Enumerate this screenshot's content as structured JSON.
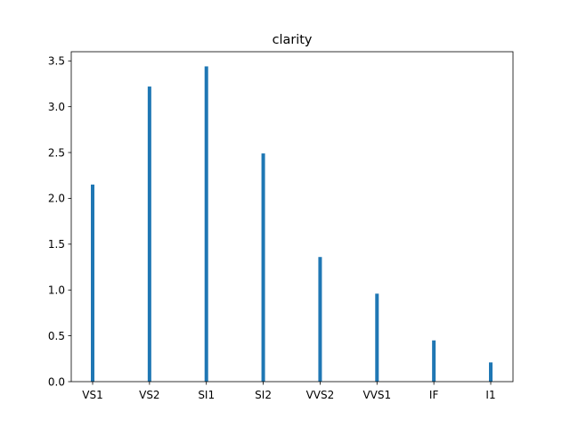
{
  "chart_data": {
    "type": "bar",
    "title": "clarity",
    "xlabel": "",
    "ylabel": "",
    "categories": [
      "VS1",
      "VS2",
      "SI1",
      "SI2",
      "VVS2",
      "VVS1",
      "IF",
      "I1"
    ],
    "values": [
      2.15,
      3.22,
      3.44,
      2.49,
      1.36,
      0.96,
      0.45,
      0.21
    ],
    "ylim": [
      0,
      3.6
    ],
    "yticks": [
      "0.0",
      "0.5",
      "1.0",
      "1.5",
      "2.0",
      "2.5",
      "3.0",
      "3.5"
    ],
    "grid": false,
    "bar_color": "#1f77b4"
  }
}
